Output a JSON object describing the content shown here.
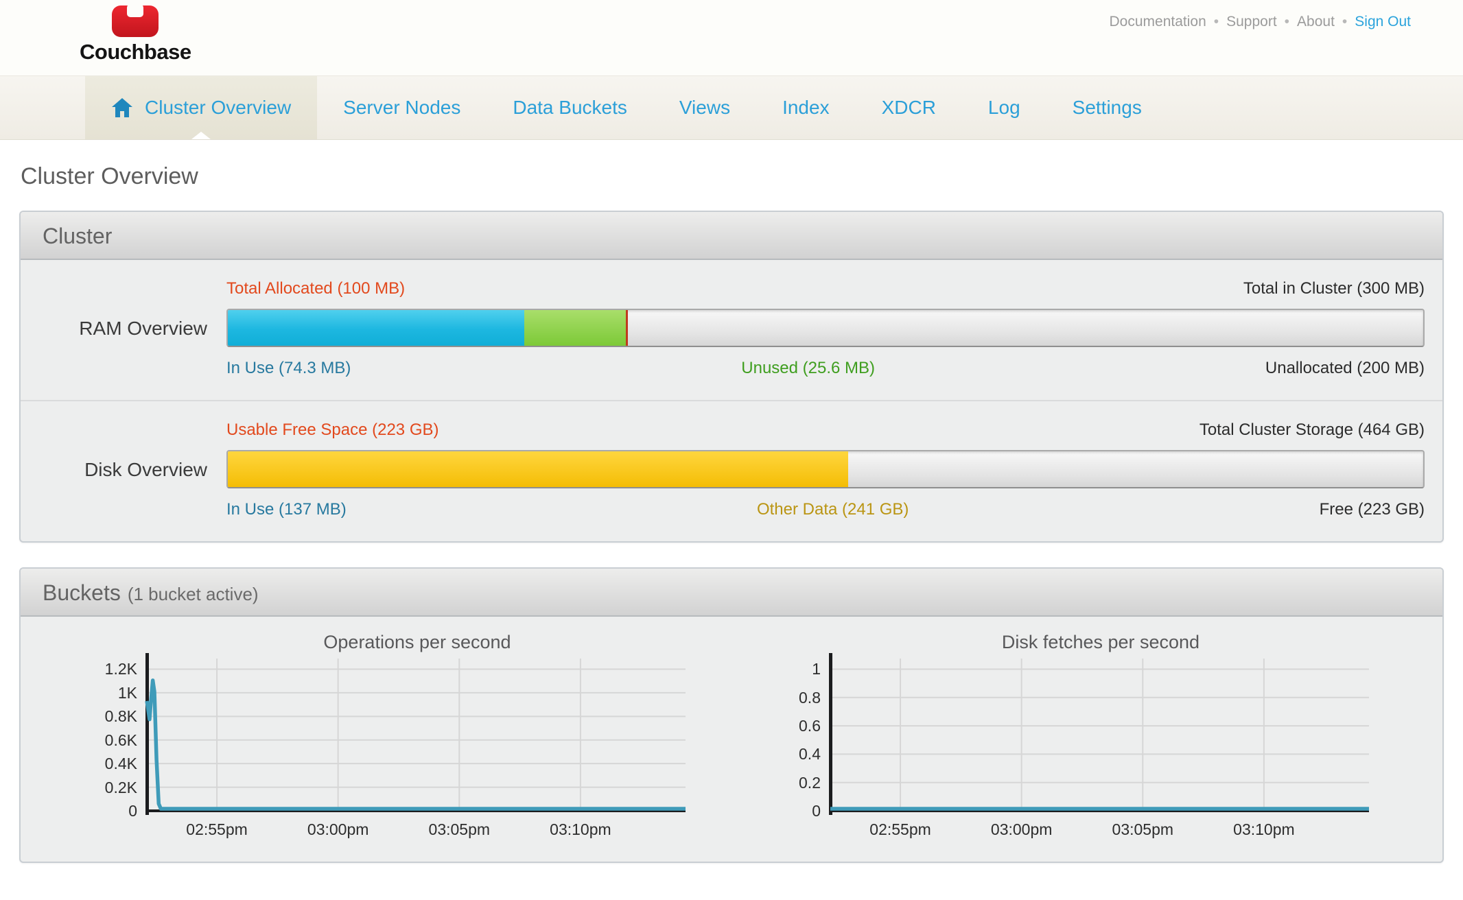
{
  "header": {
    "logo_text": "Couchbase",
    "separator": "•",
    "links": [
      "Documentation",
      "Support",
      "About",
      "Sign Out"
    ]
  },
  "nav": {
    "tabs": [
      {
        "label": "Cluster Overview",
        "active": true
      },
      {
        "label": "Server Nodes",
        "active": false
      },
      {
        "label": "Data Buckets",
        "active": false
      },
      {
        "label": "Views",
        "active": false
      },
      {
        "label": "Index",
        "active": false
      },
      {
        "label": "XDCR",
        "active": false
      },
      {
        "label": "Log",
        "active": false
      },
      {
        "label": "Settings",
        "active": false
      }
    ]
  },
  "page": {
    "title": "Cluster Overview"
  },
  "cluster_panel": {
    "title": "Cluster",
    "ram": {
      "row_label": "RAM Overview",
      "top_left": "Total Allocated (100 MB)",
      "top_right": "Total in Cluster (300 MB)",
      "bottom_left": "In Use (74.3 MB)",
      "bottom_center": "Unused (25.6 MB)",
      "bottom_right": "Unallocated (200 MB)",
      "in_use_pct": 24.8,
      "unused_pct": 8.5,
      "marker_pct": 33.33
    },
    "disk": {
      "row_label": "Disk Overview",
      "top_left": "Usable Free Space (223 GB)",
      "top_right": "Total Cluster Storage (464 GB)",
      "bottom_left": "In Use (137 MB)",
      "bottom_center": "Other Data (241 GB)",
      "bottom_right": "Free (223 GB)",
      "used_pct": 51.9
    }
  },
  "buckets_panel": {
    "title": "Buckets",
    "subtitle": "(1 bucket active)"
  },
  "chart_data": [
    {
      "type": "line",
      "title": "Operations per second",
      "xlabel": "",
      "ylabel": "",
      "ylim": [
        0,
        1290
      ],
      "grid": true,
      "legend": "none",
      "line_color": "#3f9bb9",
      "yticks": [
        {
          "v": 1200,
          "label": "1.2K"
        },
        {
          "v": 1000,
          "label": "1K"
        },
        {
          "v": 800,
          "label": "0.8K"
        },
        {
          "v": 600,
          "label": "0.6K"
        },
        {
          "v": 400,
          "label": "0.4K"
        },
        {
          "v": 200,
          "label": "0.2K"
        },
        {
          "v": 0,
          "label": "0"
        }
      ],
      "xticks": [
        {
          "pos": 0.13,
          "label": "02:55pm"
        },
        {
          "pos": 0.355,
          "label": "03:00pm"
        },
        {
          "pos": 0.58,
          "label": "03:05pm"
        },
        {
          "pos": 0.805,
          "label": "03:10pm"
        }
      ],
      "points": [
        [
          0.0,
          930
        ],
        [
          0.003,
          840
        ],
        [
          0.005,
          775
        ],
        [
          0.008,
          950
        ],
        [
          0.011,
          1105
        ],
        [
          0.014,
          1010
        ],
        [
          0.018,
          430
        ],
        [
          0.022,
          60
        ],
        [
          0.026,
          0
        ],
        [
          1.0,
          0
        ]
      ]
    },
    {
      "type": "line",
      "title": "Disk fetches per second",
      "xlabel": "",
      "ylabel": "",
      "ylim": [
        0,
        1.075
      ],
      "grid": true,
      "legend": "none",
      "line_color": "#3f9bb9",
      "yticks": [
        {
          "v": 1,
          "label": "1"
        },
        {
          "v": 0.8,
          "label": "0.8"
        },
        {
          "v": 0.6,
          "label": "0.6"
        },
        {
          "v": 0.4,
          "label": "0.4"
        },
        {
          "v": 0.2,
          "label": "0.2"
        },
        {
          "v": 0,
          "label": "0"
        }
      ],
      "xticks": [
        {
          "pos": 0.13,
          "label": "02:55pm"
        },
        {
          "pos": 0.355,
          "label": "03:00pm"
        },
        {
          "pos": 0.58,
          "label": "03:05pm"
        },
        {
          "pos": 0.805,
          "label": "03:10pm"
        }
      ],
      "points": [
        [
          0,
          0
        ],
        [
          1,
          0
        ]
      ]
    }
  ],
  "colors": {
    "nav_blue": "#2b9fd8",
    "signout_blue": "#2ba3dc",
    "label_red": "#e2491d",
    "label_green": "#3f9e1f",
    "label_blue": "#27799f",
    "label_gold": "#ba9513",
    "bar_blue": "#1db7e0",
    "bar_green": "#7cc937",
    "bar_yellow": "#f4bd05",
    "marker_red": "#c0391f",
    "chart_line": "#3f9bb9"
  }
}
